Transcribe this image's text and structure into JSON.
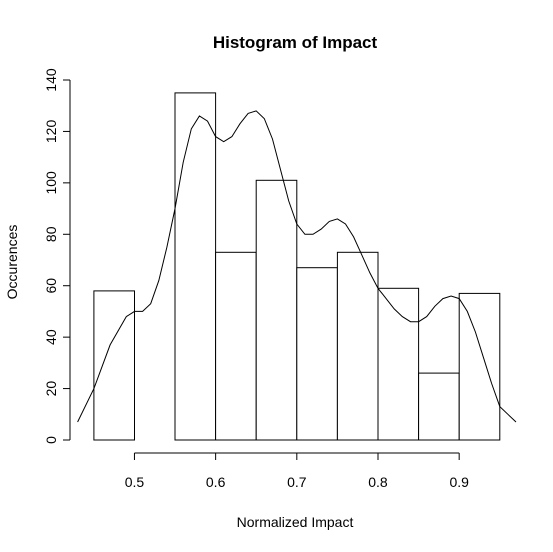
{
  "chart_data": {
    "type": "bar",
    "title": "Histogram of Impact",
    "xlabel": "Normalized Impact",
    "ylabel": "Occurences",
    "bin_edges": [
      0.45,
      0.5,
      0.55,
      0.6,
      0.65,
      0.7,
      0.75,
      0.8,
      0.85,
      0.9,
      0.95
    ],
    "values": [
      58,
      0,
      135,
      73,
      101,
      67,
      73,
      59,
      26,
      57
    ],
    "xlim": [
      0.428,
      0.97
    ],
    "ylim": [
      0,
      140
    ],
    "x_ticks": [
      "0.5",
      "0.6",
      "0.7",
      "0.8",
      "0.9"
    ],
    "y_ticks": [
      "0",
      "20",
      "40",
      "60",
      "80",
      "100",
      "120",
      "140"
    ],
    "grid": false,
    "density_curve": {
      "x": [
        0.43,
        0.45,
        0.47,
        0.49,
        0.5,
        0.51,
        0.52,
        0.53,
        0.54,
        0.55,
        0.56,
        0.57,
        0.58,
        0.59,
        0.6,
        0.61,
        0.62,
        0.63,
        0.64,
        0.65,
        0.66,
        0.67,
        0.68,
        0.69,
        0.7,
        0.71,
        0.72,
        0.73,
        0.74,
        0.75,
        0.76,
        0.77,
        0.78,
        0.79,
        0.8,
        0.81,
        0.82,
        0.83,
        0.84,
        0.85,
        0.86,
        0.87,
        0.88,
        0.89,
        0.9,
        0.91,
        0.92,
        0.93,
        0.94,
        0.95,
        0.96,
        0.97
      ],
      "y": [
        7,
        20,
        37,
        48,
        50,
        50,
        53,
        62,
        75,
        90,
        108,
        121,
        126,
        124,
        118,
        116,
        118,
        123,
        127,
        128,
        125,
        117,
        105,
        93,
        84,
        80,
        80,
        82,
        85,
        86,
        84,
        79,
        72,
        65,
        59,
        55,
        51,
        48,
        46,
        46,
        48,
        52,
        55,
        56,
        55,
        50,
        42,
        32,
        22,
        13,
        10,
        7
      ]
    }
  }
}
